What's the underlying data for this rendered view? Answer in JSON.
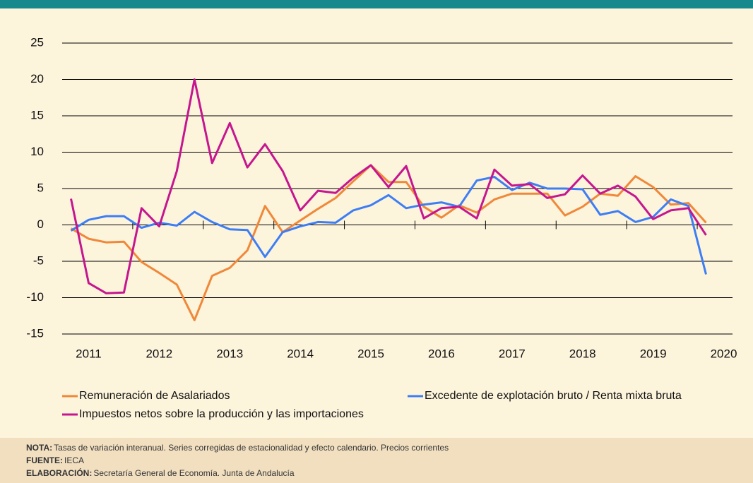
{
  "chart_data": {
    "type": "line",
    "categories": [
      null,
      "2011",
      null,
      null,
      null,
      "2012",
      null,
      null,
      null,
      "2013",
      null,
      null,
      null,
      "2014",
      null,
      null,
      null,
      "2015",
      null,
      null,
      null,
      "2016",
      null,
      null,
      null,
      "2017",
      null,
      null,
      null,
      "2018",
      null,
      null,
      null,
      "2019",
      null,
      null,
      null,
      "2020"
    ],
    "series": [
      {
        "name": "Remuneración de Asalariados",
        "color": "#f0883a",
        "values": [
          -0.5,
          -1.9,
          -2.4,
          -2.3,
          -5.1,
          -6.6,
          -8.2,
          -13.1,
          -7.0,
          -5.9,
          -3.5,
          2.6,
          -1.0,
          0.6,
          2.2,
          3.7,
          6.0,
          8.2,
          5.9,
          5.9,
          2.5,
          1.0,
          2.7,
          1.7,
          3.5,
          4.3,
          4.3,
          4.3,
          1.3,
          2.5,
          4.3,
          4.0,
          6.7,
          5.2,
          2.8,
          3.0,
          0.3,
          null
        ]
      },
      {
        "name": "Excedente de explotación bruto / Renta mixta bruta",
        "color": "#3d7ef5",
        "values": [
          -0.8,
          0.7,
          1.2,
          1.2,
          -0.4,
          0.3,
          -0.1,
          1.8,
          0.4,
          -0.6,
          -0.7,
          -4.4,
          -1.0,
          -0.2,
          0.4,
          0.3,
          2.0,
          2.7,
          4.1,
          2.3,
          2.8,
          3.1,
          2.5,
          6.1,
          6.6,
          4.8,
          5.8,
          5.0,
          5.0,
          4.9,
          1.4,
          1.9,
          0.4,
          1.1,
          3.5,
          2.6,
          -6.8,
          null
        ]
      },
      {
        "name": "Impuestos netos sobre la producción y las importaciones",
        "color": "#c5168f",
        "values": [
          3.6,
          -8.0,
          -9.4,
          -9.3,
          2.3,
          -0.2,
          7.4,
          20.0,
          8.5,
          14.0,
          7.9,
          11.1,
          7.4,
          2.0,
          4.7,
          4.4,
          6.5,
          8.2,
          5.2,
          8.1,
          0.9,
          2.3,
          2.5,
          0.9,
          7.6,
          5.4,
          5.6,
          3.7,
          4.2,
          6.8,
          4.3,
          5.4,
          3.9,
          0.8,
          2.0,
          2.3,
          -1.4,
          null
        ]
      }
    ],
    "ylim": [
      -15,
      25
    ],
    "yticks": [
      -15,
      -10,
      -5,
      0,
      5,
      10,
      15,
      20,
      25
    ],
    "grid": true,
    "notes": [
      {
        "label": "NOTA:",
        "text": "Tasas de variación interanual. Series corregidas de estacionalidad y efecto calendario. Precios corrientes"
      },
      {
        "label": "FUENTE:",
        "text": "IECA"
      },
      {
        "label": "ELABORACIÓN:",
        "text": "Secretaría General de Economía. Junta de Andalucía"
      }
    ]
  }
}
